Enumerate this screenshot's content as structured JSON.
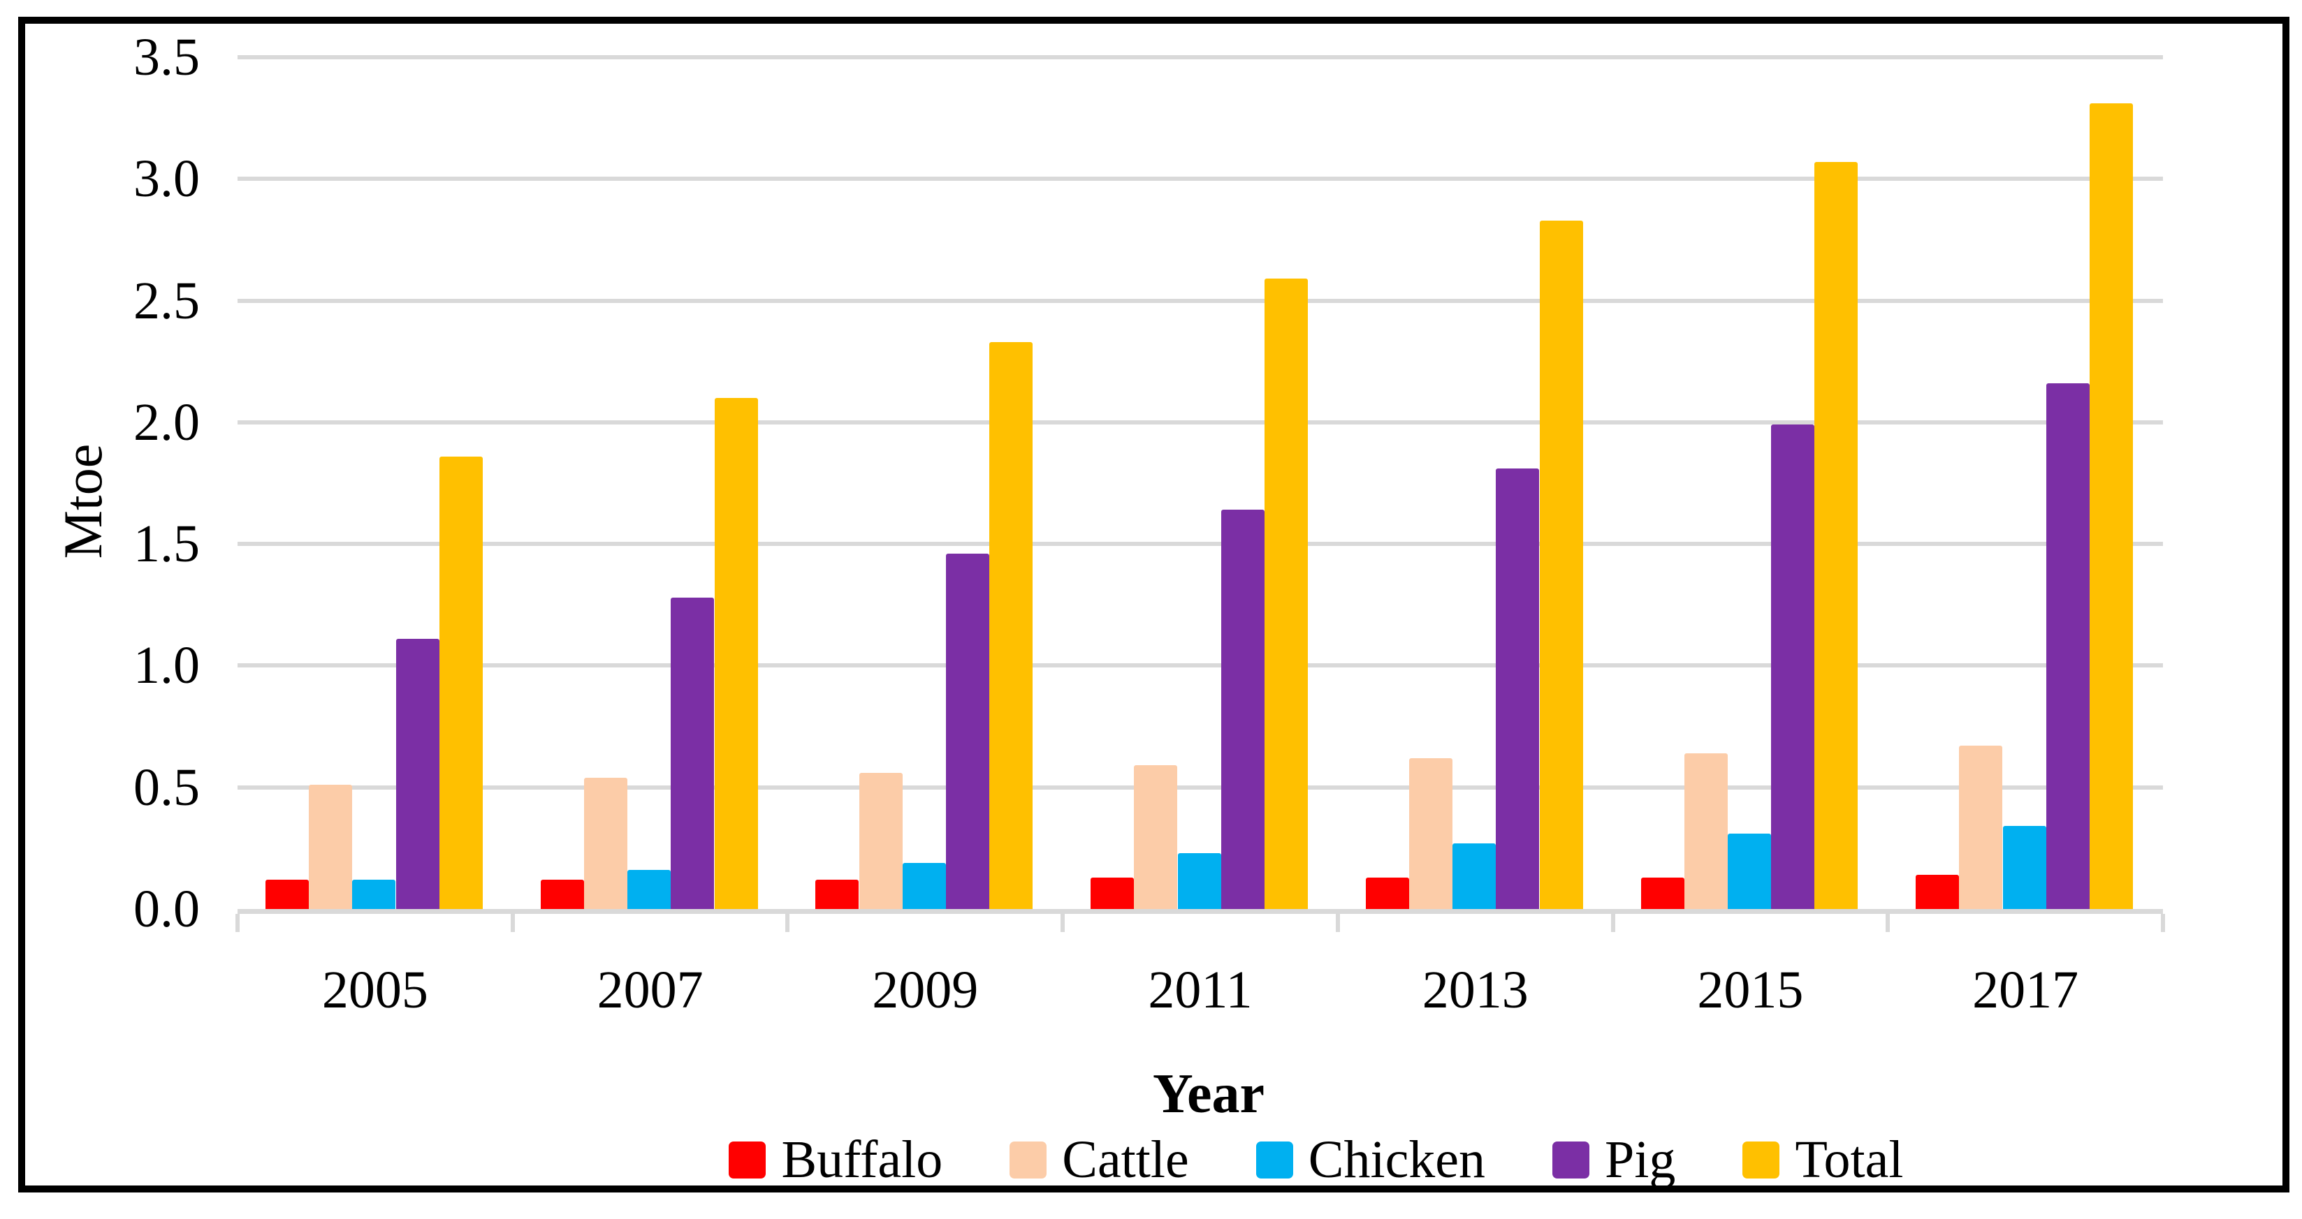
{
  "chart_data": {
    "type": "bar",
    "title": "",
    "xlabel": "Year",
    "ylabel": "Mtoe",
    "categories": [
      "2005",
      "2007",
      "2009",
      "2011",
      "2013",
      "2015",
      "2017"
    ],
    "series": [
      {
        "name": "Buffalo",
        "color": "#ff0000",
        "values": [
          0.12,
          0.12,
          0.12,
          0.13,
          0.13,
          0.13,
          0.14
        ]
      },
      {
        "name": "Cattle",
        "color": "#fccca8",
        "values": [
          0.51,
          0.54,
          0.56,
          0.59,
          0.62,
          0.64,
          0.67
        ]
      },
      {
        "name": "Chicken",
        "color": "#00b0f0",
        "values": [
          0.12,
          0.16,
          0.19,
          0.23,
          0.27,
          0.31,
          0.34
        ]
      },
      {
        "name": "Pig",
        "color": "#7b2fa5",
        "values": [
          1.11,
          1.28,
          1.46,
          1.64,
          1.81,
          1.99,
          2.16
        ]
      },
      {
        "name": "Total",
        "color": "#ffc000",
        "values": [
          1.86,
          2.1,
          2.33,
          2.59,
          2.83,
          3.07,
          3.31
        ]
      }
    ],
    "ylim": [
      0,
      3.5
    ],
    "ytick_step": 0.5,
    "ytick_labels": [
      "3.5",
      "3.0",
      "2.5",
      "2.0",
      "1.5",
      "1.0",
      "0.5",
      "0.0"
    ],
    "grid": "horizontal-gray-lines",
    "legend_position": "bottom",
    "legend_labels": [
      "Buffalo",
      "Cattle",
      "Chicken",
      "Pig",
      "Total"
    ]
  },
  "style_colors": {
    "gridline": "#d9d9d9",
    "axis_line": "#d9d9d9",
    "frame_border": "#000000",
    "text": "#000000",
    "background": "#ffffff"
  }
}
